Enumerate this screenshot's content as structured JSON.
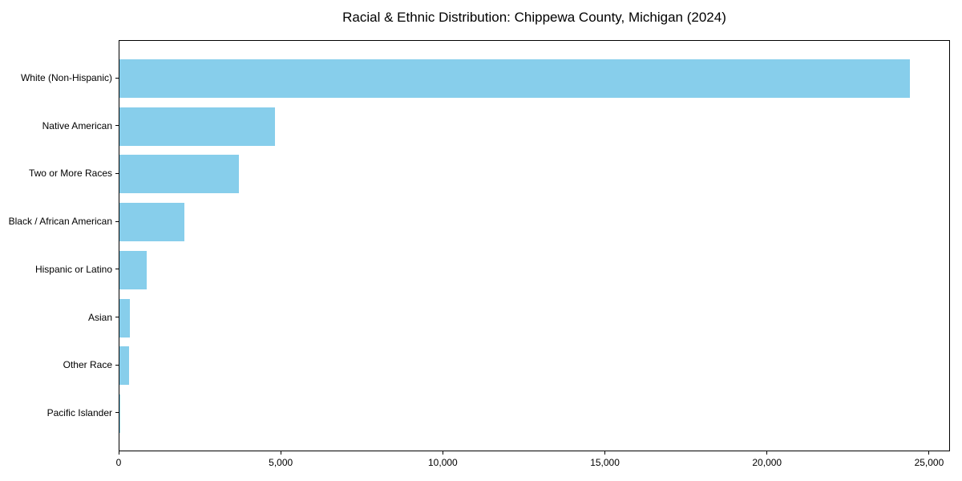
{
  "title": "Racial & Ethnic Distribution: Chippewa County, Michigan (2024)",
  "chart_data": {
    "type": "bar",
    "orientation": "horizontal",
    "title": "Racial & Ethnic Distribution: Chippewa County, Michigan (2024)",
    "categories": [
      "White (Non-Hispanic)",
      "Native American",
      "Two or More Races",
      "Black / African American",
      "Hispanic or Latino",
      "Asian",
      "Other Race",
      "Pacific Islander"
    ],
    "values": [
      24400,
      4790,
      3700,
      2000,
      850,
      310,
      300,
      10
    ],
    "xlabel": "",
    "ylabel": "",
    "xlim": [
      0,
      25620
    ],
    "x_ticks": [
      0,
      5000,
      10000,
      15000,
      20000,
      25000
    ],
    "x_tick_labels": [
      "0",
      "5,000",
      "10,000",
      "15,000",
      "20,000",
      "25,000"
    ],
    "bar_color": "#87CEEB",
    "grid": false,
    "legend": false
  },
  "colors": {
    "bar": "#87CEEB",
    "axis": "#000000",
    "text": "#000000",
    "background": "#ffffff"
  }
}
